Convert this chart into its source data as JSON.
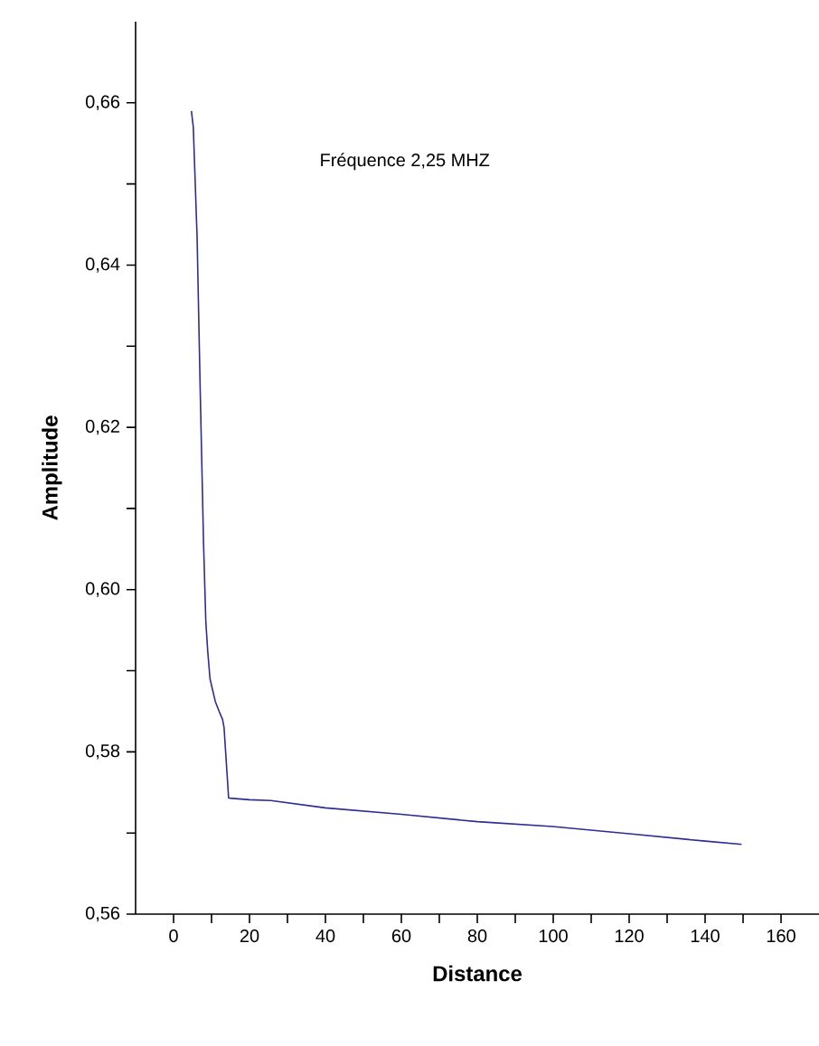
{
  "chart_data": {
    "type": "line",
    "xlabel": "Distance",
    "ylabel": "Amplitude",
    "annotations": [
      "Fréquence 2,25 MHZ"
    ],
    "series": [
      {
        "color": "#2b2b9a",
        "x": [
          4.7,
          5.2,
          6.2,
          7.0,
          7.9,
          8.5,
          9.0,
          9.6,
          11.0,
          12.0,
          12.9,
          13.3,
          14.5,
          20,
          25.6,
          40,
          60,
          80,
          99.8,
          120,
          140,
          149.6
        ],
        "values": [
          0.659,
          0.657,
          0.6434,
          0.625,
          0.6057,
          0.596,
          0.5924,
          0.589,
          0.5862,
          0.585,
          0.584,
          0.583,
          0.5743,
          0.5741,
          0.574,
          0.5731,
          0.5723,
          0.5714,
          0.5708,
          0.5699,
          0.569,
          0.5686
        ]
      }
    ],
    "xlim": [
      -10,
      170
    ],
    "ylim": [
      0.56,
      0.67
    ],
    "xticks": [
      0,
      {
        "value": 10,
        "label": null
      },
      20,
      {
        "value": 30,
        "label": null
      },
      40,
      {
        "value": 50,
        "label": null
      },
      60,
      {
        "value": 70,
        "label": null
      },
      80,
      {
        "value": 90,
        "label": null
      },
      100,
      {
        "value": 110,
        "label": null
      },
      120,
      {
        "value": 130,
        "label": null
      },
      140,
      {
        "value": 150,
        "label": null
      },
      160
    ],
    "yticks": [
      {
        "value": 0.56,
        "label": "0,56"
      },
      {
        "value": 0.57,
        "label": null
      },
      {
        "value": 0.58,
        "label": "0,58"
      },
      {
        "value": 0.59,
        "label": null
      },
      {
        "value": 0.6,
        "label": "0,60"
      },
      {
        "value": 0.61,
        "label": null
      },
      {
        "value": 0.62,
        "label": "0,62"
      },
      {
        "value": 0.63,
        "label": null
      },
      {
        "value": 0.64,
        "label": "0,64"
      },
      {
        "value": 0.65,
        "label": null
      },
      {
        "value": 0.66,
        "label": "0,66"
      }
    ],
    "grid": false,
    "marker": "none",
    "line_style": "solid"
  }
}
